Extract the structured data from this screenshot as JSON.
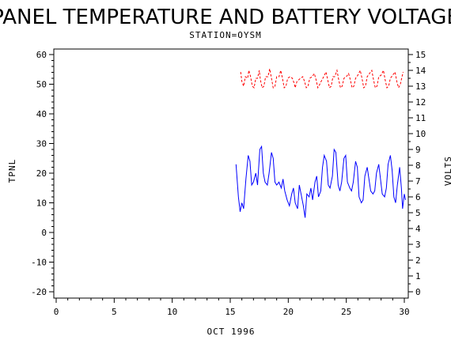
{
  "chart_data": {
    "type": "line",
    "title": "PANEL TEMPERATURE AND BATTERY VOLTAGE",
    "subtitle": "STATION=OYSM",
    "xlabel": "OCT 1996",
    "ylabel_left": "TPNL",
    "ylabel_right": "VOLTS",
    "xlim": [
      0,
      30
    ],
    "ylim_left": [
      -22,
      62
    ],
    "ylim_right": [
      0,
      15
    ],
    "x_ticks": [
      0,
      5,
      10,
      15,
      20,
      25,
      30
    ],
    "y_ticks_left": [
      -20,
      -10,
      0,
      10,
      20,
      30,
      40,
      50,
      60
    ],
    "y_ticks_right": [
      0,
      1,
      2,
      3,
      4,
      5,
      6,
      7,
      8,
      9,
      10,
      11,
      12,
      13,
      14,
      15
    ],
    "grid": false,
    "colors": {
      "temperature": "#0000ff",
      "voltage": "#ff0000"
    },
    "series": [
      {
        "axis": "left",
        "points": [
          [
            15.5,
            23
          ],
          [
            15.7,
            12
          ],
          [
            15.85,
            7
          ],
          [
            16.0,
            10
          ],
          [
            16.15,
            8
          ],
          [
            16.35,
            18
          ],
          [
            16.55,
            26
          ],
          [
            16.7,
            24
          ],
          [
            16.85,
            16
          ],
          [
            17.0,
            17
          ],
          [
            17.2,
            20
          ],
          [
            17.35,
            16
          ],
          [
            17.55,
            28
          ],
          [
            17.7,
            29
          ],
          [
            17.85,
            20
          ],
          [
            18.0,
            17
          ],
          [
            18.2,
            16
          ],
          [
            18.35,
            20
          ],
          [
            18.55,
            27
          ],
          [
            18.7,
            25
          ],
          [
            18.85,
            17
          ],
          [
            19.0,
            16
          ],
          [
            19.2,
            17
          ],
          [
            19.4,
            15
          ],
          [
            19.55,
            18
          ],
          [
            19.7,
            14
          ],
          [
            19.9,
            11
          ],
          [
            20.1,
            9
          ],
          [
            20.3,
            13
          ],
          [
            20.45,
            15
          ],
          [
            20.6,
            10
          ],
          [
            20.8,
            8
          ],
          [
            20.95,
            16
          ],
          [
            21.15,
            12
          ],
          [
            21.3,
            9
          ],
          [
            21.45,
            5
          ],
          [
            21.6,
            13
          ],
          [
            21.8,
            12
          ],
          [
            21.95,
            15
          ],
          [
            22.1,
            11
          ],
          [
            22.3,
            17
          ],
          [
            22.45,
            19
          ],
          [
            22.6,
            12
          ],
          [
            22.8,
            14
          ],
          [
            22.95,
            22
          ],
          [
            23.1,
            26
          ],
          [
            23.3,
            24
          ],
          [
            23.45,
            16
          ],
          [
            23.6,
            15
          ],
          [
            23.8,
            19
          ],
          [
            23.95,
            28
          ],
          [
            24.1,
            27
          ],
          [
            24.3,
            16
          ],
          [
            24.45,
            14
          ],
          [
            24.6,
            17
          ],
          [
            24.8,
            25
          ],
          [
            24.95,
            26
          ],
          [
            25.1,
            17
          ],
          [
            25.3,
            15
          ],
          [
            25.45,
            14
          ],
          [
            25.6,
            17
          ],
          [
            25.8,
            24
          ],
          [
            25.95,
            22
          ],
          [
            26.1,
            12
          ],
          [
            26.3,
            10
          ],
          [
            26.45,
            11
          ],
          [
            26.6,
            19
          ],
          [
            26.8,
            22
          ],
          [
            26.95,
            18
          ],
          [
            27.1,
            14
          ],
          [
            27.3,
            13
          ],
          [
            27.45,
            14
          ],
          [
            27.6,
            20
          ],
          [
            27.8,
            23
          ],
          [
            27.95,
            18
          ],
          [
            28.1,
            13
          ],
          [
            28.3,
            12
          ],
          [
            28.45,
            15
          ],
          [
            28.6,
            23
          ],
          [
            28.8,
            26
          ],
          [
            28.95,
            21
          ],
          [
            29.1,
            12
          ],
          [
            29.25,
            10
          ],
          [
            29.4,
            16
          ],
          [
            29.6,
            22
          ],
          [
            29.75,
            15
          ],
          [
            29.85,
            8
          ],
          [
            30.0,
            13
          ],
          [
            30.1,
            11
          ]
        ]
      },
      {
        "axis": "right",
        "points": [
          [
            15.9,
            13.9
          ],
          [
            16.0,
            13.3
          ],
          [
            16.15,
            13.0
          ],
          [
            16.3,
            13.6
          ],
          [
            16.5,
            13.5
          ],
          [
            16.6,
            14.0
          ],
          [
            16.75,
            13.6
          ],
          [
            16.9,
            13.0
          ],
          [
            17.05,
            12.9
          ],
          [
            17.2,
            13.5
          ],
          [
            17.35,
            13.5
          ],
          [
            17.5,
            14.0
          ],
          [
            17.6,
            13.4
          ],
          [
            17.75,
            12.9
          ],
          [
            17.9,
            13.0
          ],
          [
            18.05,
            13.6
          ],
          [
            18.25,
            13.6
          ],
          [
            18.4,
            14.1
          ],
          [
            18.55,
            13.5
          ],
          [
            18.7,
            12.9
          ],
          [
            18.85,
            13.0
          ],
          [
            19.0,
            13.6
          ],
          [
            19.2,
            13.6
          ],
          [
            19.35,
            14.0
          ],
          [
            19.5,
            13.5
          ],
          [
            19.65,
            12.9
          ],
          [
            19.8,
            13.0
          ],
          [
            19.95,
            13.5
          ],
          [
            20.15,
            13.6
          ],
          [
            20.35,
            13.5
          ],
          [
            20.5,
            13.2
          ],
          [
            20.6,
            12.9
          ],
          [
            20.75,
            13.3
          ],
          [
            20.9,
            13.4
          ],
          [
            21.05,
            13.5
          ],
          [
            21.25,
            13.6
          ],
          [
            21.4,
            13.3
          ],
          [
            21.55,
            12.9
          ],
          [
            21.7,
            13.0
          ],
          [
            21.85,
            13.5
          ],
          [
            22.05,
            13.6
          ],
          [
            22.25,
            13.8
          ],
          [
            22.4,
            13.4
          ],
          [
            22.55,
            12.9
          ],
          [
            22.7,
            13.1
          ],
          [
            22.9,
            13.4
          ],
          [
            23.05,
            13.6
          ],
          [
            23.25,
            13.9
          ],
          [
            23.4,
            13.4
          ],
          [
            23.55,
            12.9
          ],
          [
            23.7,
            13.0
          ],
          [
            23.85,
            13.6
          ],
          [
            24.0,
            13.6
          ],
          [
            24.2,
            14.0
          ],
          [
            24.35,
            13.4
          ],
          [
            24.5,
            12.9
          ],
          [
            24.65,
            13.0
          ],
          [
            24.8,
            13.5
          ],
          [
            25.0,
            13.6
          ],
          [
            25.2,
            13.8
          ],
          [
            25.35,
            13.4
          ],
          [
            25.5,
            12.9
          ],
          [
            25.65,
            13.0
          ],
          [
            25.8,
            13.5
          ],
          [
            26.0,
            13.7
          ],
          [
            26.2,
            14.0
          ],
          [
            26.35,
            13.5
          ],
          [
            26.5,
            12.9
          ],
          [
            26.65,
            13.0
          ],
          [
            26.8,
            13.6
          ],
          [
            27.0,
            13.8
          ],
          [
            27.2,
            14.0
          ],
          [
            27.35,
            13.4
          ],
          [
            27.5,
            12.9
          ],
          [
            27.65,
            13.0
          ],
          [
            27.8,
            13.6
          ],
          [
            28.0,
            13.7
          ],
          [
            28.2,
            14.0
          ],
          [
            28.35,
            13.4
          ],
          [
            28.5,
            12.9
          ],
          [
            28.65,
            13.0
          ],
          [
            28.8,
            13.5
          ],
          [
            29.0,
            13.7
          ],
          [
            29.2,
            13.9
          ],
          [
            29.35,
            13.3
          ],
          [
            29.5,
            12.9
          ],
          [
            29.65,
            13.1
          ],
          [
            29.8,
            13.6
          ],
          [
            29.9,
            13.9
          ]
        ]
      }
    ]
  }
}
